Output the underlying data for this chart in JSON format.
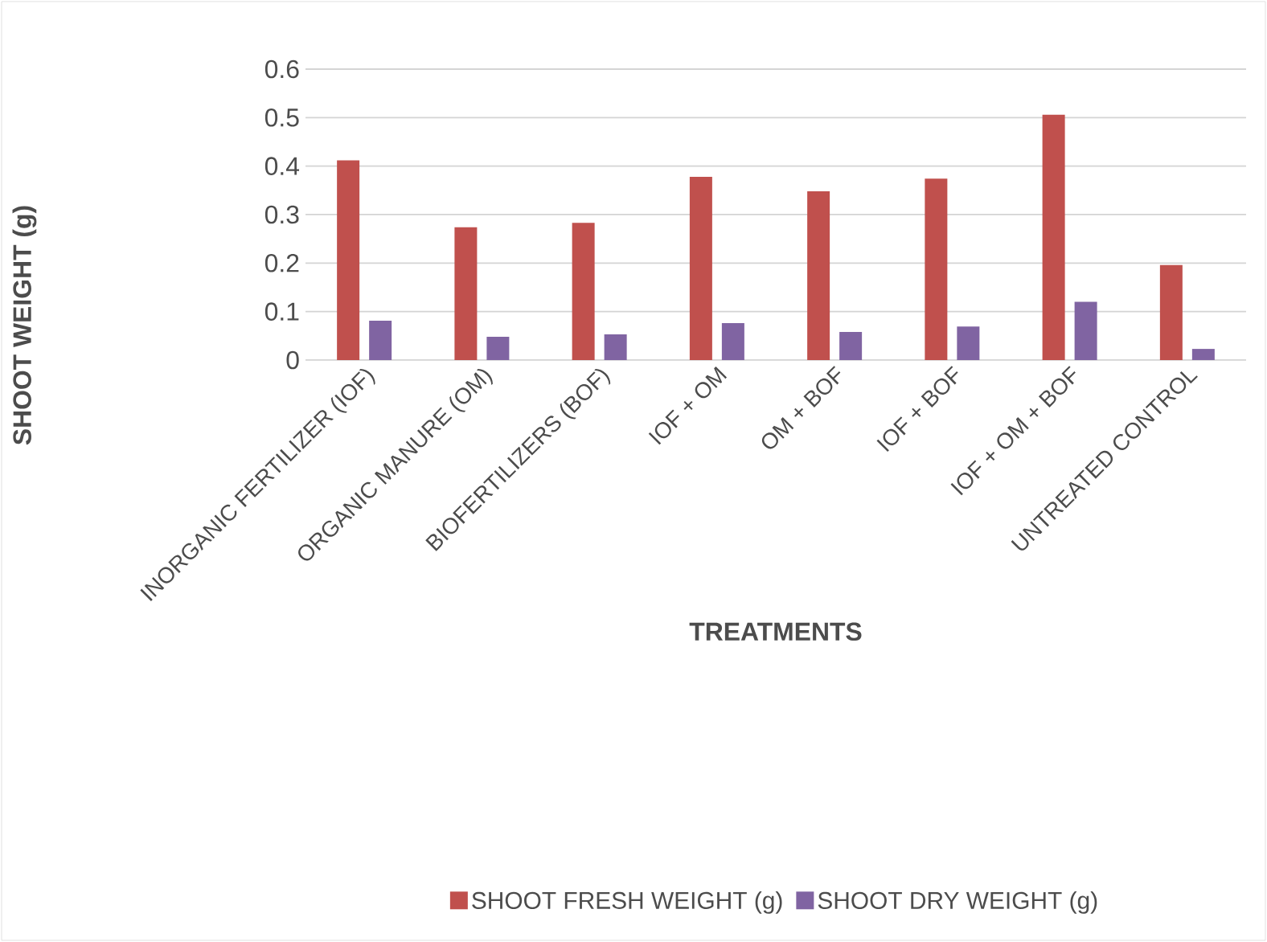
{
  "chart_data": {
    "type": "bar",
    "xlabel": "TREATMENTS",
    "ylabel": "SHOOT WEIGHT (g)",
    "categories": [
      "INORGANIC FERTILIZER (IOF)",
      "ORGANIC MANURE (OM)",
      "BIOFERTILIZERS (BOF)",
      "IOF + OM",
      "OM + BOF",
      "IOF + BOF",
      "IOF + OM + BOF",
      "UNTREATED CONTROL"
    ],
    "series": [
      {
        "name": "SHOOT FRESH WEIGHT (g)",
        "color": "#c0504d",
        "values": [
          0.412,
          0.274,
          0.283,
          0.378,
          0.348,
          0.374,
          0.506,
          0.196
        ]
      },
      {
        "name": "SHOOT DRY WEIGHT (g)",
        "color": "#8064a2",
        "values": [
          0.081,
          0.048,
          0.053,
          0.076,
          0.058,
          0.069,
          0.12,
          0.023
        ]
      }
    ],
    "ylim": [
      0,
      0.6
    ],
    "yticks": [
      0,
      0.1,
      0.2,
      0.3,
      0.4,
      0.5,
      0.6
    ],
    "grid": "y",
    "legend": "bottom"
  }
}
